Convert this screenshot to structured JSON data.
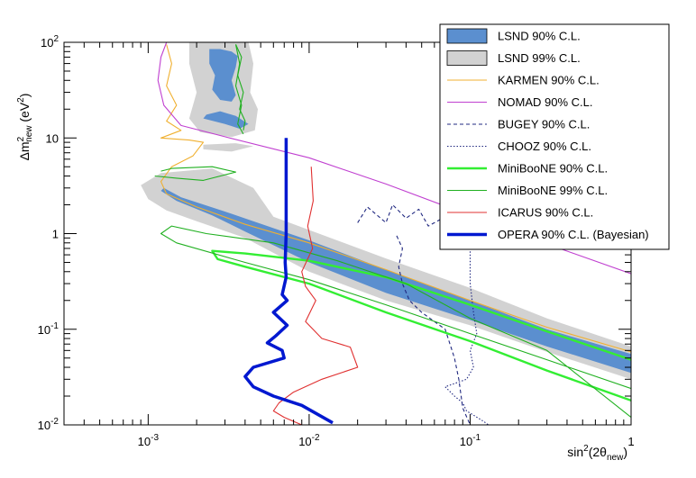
{
  "chart_data": {
    "type": "line",
    "title": "",
    "xlabel": {
      "main": "sin",
      "sup": "2",
      "open": "(2θ",
      "sub": "new",
      "close": ")"
    },
    "ylabel": {
      "pre": "Δm",
      "sup": "2",
      "sub": "new",
      "mid": " (eV",
      "sup2": "2",
      "post": ")"
    },
    "x_scale": "log",
    "y_scale": "log",
    "xlim": [
      0.0003,
      1
    ],
    "ylim": [
      0.01,
      100
    ],
    "grid": false,
    "legend_position": "top-right",
    "x_ticks": [
      {
        "value": 0.001,
        "base": "10",
        "exp": "-3"
      },
      {
        "value": 0.01,
        "base": "10",
        "exp": "-2"
      },
      {
        "value": 0.1,
        "base": "10",
        "exp": "-1"
      },
      {
        "value": 1,
        "base": "1",
        "exp": ""
      }
    ],
    "y_ticks": [
      {
        "value": 0.01,
        "base": "10",
        "exp": "-2"
      },
      {
        "value": 0.1,
        "base": "10",
        "exp": "-1"
      },
      {
        "value": 1,
        "base": "1",
        "exp": ""
      },
      {
        "value": 10,
        "base": "10",
        "exp": ""
      },
      {
        "value": 100,
        "base": "10",
        "exp": "2"
      }
    ],
    "series": [
      {
        "name": "LSND 90% C.L.",
        "kind": "band",
        "color": "#5b8fcf",
        "polygons": [
          [
            [
              0.00125,
              3.0
            ],
            [
              0.0016,
              2.4
            ],
            [
              0.003,
              1.7
            ],
            [
              0.01,
              0.85
            ],
            [
              0.03,
              0.42
            ],
            [
              0.1,
              0.2
            ],
            [
              0.3,
              0.1
            ],
            [
              1,
              0.055
            ],
            [
              1,
              0.035
            ],
            [
              0.3,
              0.066
            ],
            [
              0.1,
              0.125
            ],
            [
              0.03,
              0.24
            ],
            [
              0.01,
              0.5
            ],
            [
              0.004,
              1.05
            ],
            [
              0.0025,
              1.55
            ],
            [
              0.0015,
              2.2
            ],
            [
              0.0012,
              2.8
            ]
          ],
          [
            [
              0.0022,
              16
            ],
            [
              0.003,
              14
            ],
            [
              0.0037,
              12.5
            ],
            [
              0.0042,
              14
            ],
            [
              0.0035,
              17
            ],
            [
              0.0028,
              19
            ],
            [
              0.0023,
              17.5
            ]
          ],
          [
            [
              0.0024,
              85
            ],
            [
              0.0028,
              85
            ],
            [
              0.0033,
              80
            ],
            [
              0.0036,
              72
            ],
            [
              0.0035,
              55
            ],
            [
              0.0033,
              40
            ],
            [
              0.0035,
              28
            ],
            [
              0.0033,
              24
            ],
            [
              0.0028,
              25
            ],
            [
              0.0025,
              32
            ],
            [
              0.0026,
              45
            ],
            [
              0.0024,
              60
            ]
          ]
        ]
      },
      {
        "name": "LSND 99% C.L.",
        "kind": "band",
        "color": "#d2d2d2",
        "polygons": [
          [
            [
              0.0009,
              3.2
            ],
            [
              0.0012,
              4.3
            ],
            [
              0.0025,
              4.8
            ],
            [
              0.0045,
              3.0
            ],
            [
              0.006,
              1.5
            ],
            [
              0.03,
              0.55
            ],
            [
              0.1,
              0.27
            ],
            [
              0.3,
              0.13
            ],
            [
              1,
              0.066
            ],
            [
              1,
              0.03
            ],
            [
              0.3,
              0.058
            ],
            [
              0.1,
              0.11
            ],
            [
              0.03,
              0.2
            ],
            [
              0.01,
              0.4
            ],
            [
              0.004,
              0.9
            ],
            [
              0.002,
              1.35
            ],
            [
              0.0013,
              1.75
            ],
            [
              0.001,
              2.3
            ]
          ],
          [
            [
              0.0018,
              100
            ],
            [
              0.0042,
              100
            ],
            [
              0.0045,
              60
            ],
            [
              0.0043,
              30
            ],
            [
              0.0048,
              20
            ],
            [
              0.0046,
              12
            ],
            [
              0.0033,
              10.2
            ],
            [
              0.0021,
              11.5
            ],
            [
              0.0018,
              16
            ],
            [
              0.002,
              30
            ],
            [
              0.0018,
              60
            ]
          ],
          [
            [
              0.0022,
              8.5
            ],
            [
              0.0035,
              8.8
            ],
            [
              0.0045,
              8.2
            ],
            [
              0.0033,
              7.2
            ],
            [
              0.0022,
              7.6
            ]
          ]
        ]
      },
      {
        "name": "KARMEN 90% C.L.",
        "kind": "line",
        "color": "#f0b030",
        "dash": "",
        "points": [
          [
            0.0013,
            95
          ],
          [
            0.0014,
            60
          ],
          [
            0.0013,
            35
          ],
          [
            0.0015,
            22
          ],
          [
            0.0013,
            15
          ],
          [
            0.0016,
            12
          ],
          [
            0.0012,
            10
          ],
          [
            0.0018,
            9.5
          ],
          [
            0.0022,
            9
          ],
          [
            0.0019,
            6.5
          ],
          [
            0.0014,
            5
          ],
          [
            0.0012,
            3.5
          ],
          [
            0.0013,
            2.6
          ],
          [
            0.002,
            1.9
          ],
          [
            0.004,
            1.25
          ],
          [
            0.01,
            0.8
          ],
          [
            0.03,
            0.42
          ],
          [
            0.1,
            0.2
          ],
          [
            0.3,
            0.105
          ],
          [
            1,
            0.058
          ]
        ]
      },
      {
        "name": "NOMAD 90% C.L.",
        "kind": "line",
        "color": "#c040d0",
        "dash": "",
        "points": [
          [
            0.0013,
            100
          ],
          [
            0.0012,
            70
          ],
          [
            0.00115,
            40
          ],
          [
            0.00125,
            22
          ],
          [
            0.0016,
            13.5
          ],
          [
            0.003,
            10.3
          ],
          [
            0.01,
            6.2
          ],
          [
            0.03,
            3.3
          ],
          [
            0.1,
            1.55
          ],
          [
            0.3,
            0.78
          ],
          [
            1,
            0.38
          ]
        ]
      },
      {
        "name": "BUGEY 90% C.L.",
        "kind": "line",
        "color": "#202880",
        "dash": "4,3",
        "points": [
          [
            0.02,
            1.3
          ],
          [
            0.023,
            1.9
          ],
          [
            0.03,
            1.3
          ],
          [
            0.033,
            2.0
          ],
          [
            0.04,
            1.45
          ],
          [
            0.048,
            1.8
          ],
          [
            0.055,
            1.2
          ],
          [
            0.07,
            1.5
          ],
          [
            0.085,
            1.8
          ],
          [
            0.1,
            1.5
          ],
          [
            0.11,
            1.7
          ],
          [
            0.13,
            1.6
          ],
          [
            0.15,
            1.9
          ],
          [
            0.18,
            1.6
          ],
          [
            0.21,
            1.65
          ],
          [
            0.22,
            1.9
          ],
          [
            0.25,
            1.55
          ],
          [
            0.3,
            1.65
          ],
          [
            0.4,
            1.55
          ],
          [
            1,
            1.5
          ]
        ],
        "points2": [
          [
            0.035,
            0.95
          ],
          [
            0.038,
            0.7
          ],
          [
            0.036,
            0.45
          ],
          [
            0.038,
            0.3
          ],
          [
            0.042,
            0.2
          ],
          [
            0.05,
            0.15
          ],
          [
            0.07,
            0.1
          ],
          [
            0.08,
            0.05
          ],
          [
            0.085,
            0.03
          ],
          [
            0.09,
            0.015
          ],
          [
            0.1,
            0.01
          ]
        ]
      },
      {
        "name": "CHOOZ 90% C.L.",
        "kind": "line",
        "color": "#202880",
        "dash": "1.5,2",
        "points": [
          [
            0.1,
            1.5
          ],
          [
            0.1,
            0.8
          ],
          [
            0.1,
            0.3
          ],
          [
            0.105,
            0.15
          ],
          [
            0.11,
            0.09
          ],
          [
            0.1,
            0.06
          ],
          [
            0.105,
            0.04
          ],
          [
            0.095,
            0.03
          ],
          [
            0.07,
            0.025
          ],
          [
            0.08,
            0.02
          ],
          [
            0.09,
            0.017
          ],
          [
            0.095,
            0.014
          ],
          [
            0.12,
            0.011
          ],
          [
            0.13,
            0.01
          ]
        ]
      },
      {
        "name": "MiniBooNE 90% C.L.",
        "kind": "line",
        "color": "#33ee33",
        "dash": "",
        "width": 2.4,
        "points": [
          [
            1,
            0.048
          ],
          [
            0.3,
            0.095
          ],
          [
            0.1,
            0.18
          ],
          [
            0.03,
            0.35
          ],
          [
            0.01,
            0.52
          ],
          [
            0.004,
            0.62
          ],
          [
            0.0025,
            0.66
          ],
          [
            0.0027,
            0.54
          ],
          [
            0.004,
            0.45
          ],
          [
            0.01,
            0.3
          ],
          [
            0.03,
            0.15
          ],
          [
            0.1,
            0.075
          ],
          [
            0.3,
            0.037
          ],
          [
            1,
            0.018
          ]
        ]
      },
      {
        "name": "MiniBooNE 99% C.L.",
        "kind": "line",
        "color": "#20b020",
        "dash": "",
        "points": [
          [
            0.0012,
            4.5
          ],
          [
            0.0014,
            4.8
          ],
          [
            0.0025,
            5.0
          ],
          [
            0.0035,
            4.4
          ],
          [
            0.0022,
            3.6
          ],
          [
            0.0015,
            3.8
          ],
          [
            0.0011,
            4.0
          ]
        ],
        "points2": [
          [
            0.0035,
            95
          ],
          [
            0.0038,
            70
          ],
          [
            0.0036,
            45
          ],
          [
            0.0039,
            30
          ],
          [
            0.0037,
            20
          ],
          [
            0.004,
            15
          ],
          [
            0.0039,
            12
          ]
        ],
        "points3": [
          [
            0.0035,
            95
          ],
          [
            0.0037,
            60
          ],
          [
            0.0035,
            35
          ],
          [
            0.0038,
            22
          ],
          [
            0.0036,
            14
          ],
          [
            0.0039,
            11
          ]
        ],
        "points4": [
          [
            1,
            0.024
          ],
          [
            0.3,
            0.048
          ],
          [
            0.1,
            0.09
          ],
          [
            0.03,
            0.18
          ],
          [
            0.01,
            0.33
          ],
          [
            0.004,
            0.5
          ],
          [
            0.0015,
            0.8
          ],
          [
            0.0012,
            1.0
          ],
          [
            0.0014,
            1.2
          ],
          [
            0.0023,
            1.0
          ],
          [
            0.006,
            0.8
          ],
          [
            0.015,
            0.52
          ],
          [
            0.04,
            0.3
          ],
          [
            0.1,
            0.13
          ],
          [
            0.3,
            0.06
          ],
          [
            1,
            0.012
          ]
        ]
      },
      {
        "name": "ICARUS 90% C.L.",
        "kind": "line",
        "color": "#e03030",
        "dash": "",
        "points": [
          [
            0.0103,
            5
          ],
          [
            0.0106,
            2.2
          ],
          [
            0.0098,
            1.2
          ],
          [
            0.0105,
            0.7
          ],
          [
            0.009,
            0.4
          ],
          [
            0.0095,
            0.28
          ],
          [
            0.011,
            0.2
          ],
          [
            0.0095,
            0.12
          ],
          [
            0.012,
            0.08
          ],
          [
            0.018,
            0.065
          ],
          [
            0.02,
            0.04
          ],
          [
            0.012,
            0.03
          ],
          [
            0.008,
            0.022
          ],
          [
            0.0065,
            0.017
          ],
          [
            0.006,
            0.014
          ],
          [
            0.007,
            0.012
          ],
          [
            0.009,
            0.01
          ]
        ]
      },
      {
        "name": "OPERA 90% C.L. (Bayesian)",
        "kind": "line",
        "color": "#0018d0",
        "dash": "",
        "width": 3.5,
        "points": [
          [
            0.0072,
            10
          ],
          [
            0.0072,
            3
          ],
          [
            0.0072,
            1
          ],
          [
            0.0071,
            0.5
          ],
          [
            0.0072,
            0.35
          ],
          [
            0.0068,
            0.23
          ],
          [
            0.0073,
            0.2
          ],
          [
            0.006,
            0.15
          ],
          [
            0.0073,
            0.11
          ],
          [
            0.0062,
            0.085
          ],
          [
            0.0055,
            0.072
          ],
          [
            0.0068,
            0.06
          ],
          [
            0.007,
            0.05
          ],
          [
            0.0045,
            0.04
          ],
          [
            0.004,
            0.032
          ],
          [
            0.0045,
            0.025
          ],
          [
            0.006,
            0.02
          ],
          [
            0.009,
            0.016
          ],
          [
            0.014,
            0.0105
          ]
        ]
      }
    ]
  }
}
